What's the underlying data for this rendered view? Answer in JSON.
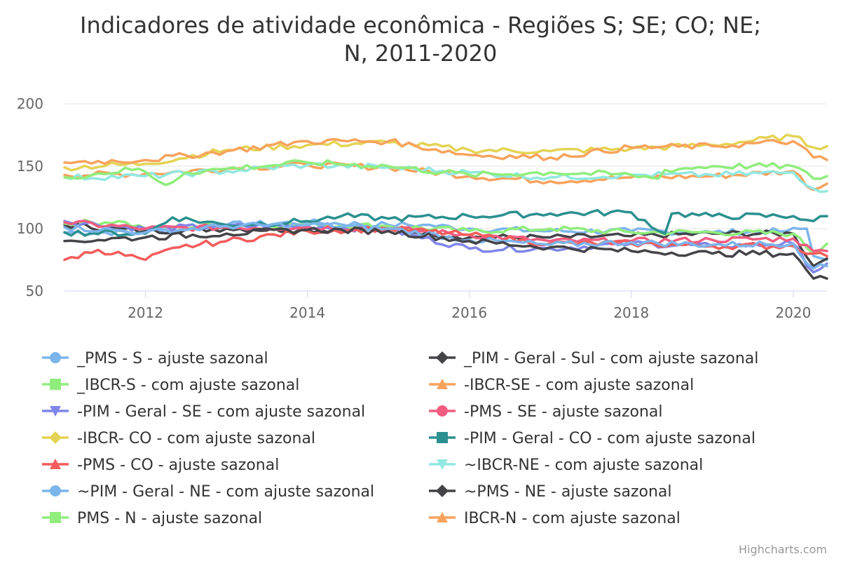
{
  "chart_data": {
    "type": "line",
    "title_line1": "Indicadores de atividade econômica - Regiões S; SE; CO; NE;",
    "title_line2": "N, 2011-2020",
    "xlim": [
      "2011-01",
      "2020-06"
    ],
    "xticks": [
      "2012",
      "2014",
      "2016",
      "2018",
      "2020"
    ],
    "ylim": [
      50,
      200
    ],
    "yticks": [
      "50",
      "100",
      "150",
      "200"
    ],
    "grid": true,
    "legend_position": "bottom",
    "credits": "Highcharts.com",
    "series": [
      {
        "name": "_PMS - S - ajuste sazonal",
        "color": "#7cb5ec",
        "marker": "circle",
        "points": [
          [
            "2011-01",
            97
          ],
          [
            "2012-01",
            97
          ],
          [
            "2013-01",
            103
          ],
          [
            "2014-01",
            105
          ],
          [
            "2015-01",
            103
          ],
          [
            "2015-06",
            103
          ],
          [
            "2016-01",
            100
          ],
          [
            "2017-01",
            98
          ],
          [
            "2018-01",
            98
          ],
          [
            "2019-01",
            97
          ],
          [
            "2019-12",
            98
          ],
          [
            "2020-03",
            100
          ],
          [
            "2020-04",
            78
          ],
          [
            "2020-06",
            75
          ]
        ]
      },
      {
        "name": "_PIM - Geral - Sul - com ajuste sazonal",
        "color": "#434348",
        "marker": "diamond",
        "points": [
          [
            "2011-01",
            103
          ],
          [
            "2012-01",
            98
          ],
          [
            "2013-01",
            100
          ],
          [
            "2014-01",
            99
          ],
          [
            "2015-01",
            100
          ],
          [
            "2016-01",
            93
          ],
          [
            "2017-01",
            93
          ],
          [
            "2018-01",
            94
          ],
          [
            "2019-01",
            96
          ],
          [
            "2020-01",
            96
          ],
          [
            "2020-04",
            70
          ],
          [
            "2020-06",
            76
          ]
        ]
      },
      {
        "name": "_IBCR-S - com ajuste sazonal",
        "color": "#90ed7d",
        "marker": "square",
        "points": [
          [
            "2011-01",
            104
          ],
          [
            "2011-09",
            106
          ],
          [
            "2012-01",
            100
          ],
          [
            "2013-01",
            103
          ],
          [
            "2014-01",
            103
          ],
          [
            "2015-01",
            102
          ],
          [
            "2016-01",
            98
          ],
          [
            "2017-01",
            100
          ],
          [
            "2018-01",
            97
          ],
          [
            "2019-01",
            97
          ],
          [
            "2020-01",
            96
          ],
          [
            "2020-04",
            80
          ],
          [
            "2020-06",
            88
          ]
        ]
      },
      {
        "name": "-IBCR-SE - com ajuste sazonal",
        "color": "#f7a35c",
        "marker": "triangle",
        "points": [
          [
            "2011-01",
            143
          ],
          [
            "2012-01",
            144
          ],
          [
            "2013-01",
            148
          ],
          [
            "2014-01",
            151
          ],
          [
            "2015-01",
            149
          ],
          [
            "2016-01",
            142
          ],
          [
            "2017-01",
            138
          ],
          [
            "2018-01",
            141
          ],
          [
            "2019-01",
            142
          ],
          [
            "2020-01",
            146
          ],
          [
            "2020-04",
            131
          ],
          [
            "2020-06",
            136
          ]
        ]
      },
      {
        "name": "-PIM - Geral - SE - com ajuste sazonal",
        "color": "#8085e9",
        "marker": "triangle-down",
        "points": [
          [
            "2011-01",
            106
          ],
          [
            "2012-01",
            100
          ],
          [
            "2013-01",
            102
          ],
          [
            "2014-01",
            102
          ],
          [
            "2015-01",
            99
          ],
          [
            "2016-01",
            84
          ],
          [
            "2017-01",
            84
          ],
          [
            "2018-01",
            88
          ],
          [
            "2019-01",
            86
          ],
          [
            "2020-01",
            88
          ],
          [
            "2020-04",
            65
          ],
          [
            "2020-06",
            72
          ]
        ]
      },
      {
        "name": "-PMS - SE - ajuste sazonal",
        "color": "#f15c80",
        "marker": "circle",
        "points": [
          [
            "2011-01",
            105
          ],
          [
            "2012-01",
            100
          ],
          [
            "2013-01",
            101
          ],
          [
            "2014-01",
            101
          ],
          [
            "2015-01",
            100
          ],
          [
            "2016-01",
            95
          ],
          [
            "2017-01",
            90
          ],
          [
            "2018-01",
            90
          ],
          [
            "2019-01",
            91
          ],
          [
            "2020-01",
            92
          ],
          [
            "2020-04",
            82
          ],
          [
            "2020-06",
            82
          ]
        ]
      },
      {
        "name": "-IBCR- CO - com ajuste sazonal",
        "color": "#e4d354",
        "marker": "diamond",
        "points": [
          [
            "2011-01",
            149
          ],
          [
            "2012-01",
            152
          ],
          [
            "2013-01",
            163
          ],
          [
            "2014-01",
            167
          ],
          [
            "2015-01",
            169
          ],
          [
            "2016-01",
            163
          ],
          [
            "2017-01",
            162
          ],
          [
            "2018-01",
            164
          ],
          [
            "2019-01",
            167
          ],
          [
            "2020-01",
            174
          ],
          [
            "2020-04",
            165
          ],
          [
            "2020-06",
            166
          ]
        ]
      },
      {
        "name": "-PIM - Geral - CO - com ajuste sazonal",
        "color": "#2b908f",
        "marker": "square",
        "points": [
          [
            "2011-01",
            97
          ],
          [
            "2012-01",
            96
          ],
          [
            "2012-05",
            109
          ],
          [
            "2013-01",
            103
          ],
          [
            "2014-01",
            106
          ],
          [
            "2014-06",
            110
          ],
          [
            "2015-01",
            108
          ],
          [
            "2016-01",
            110
          ],
          [
            "2017-01",
            112
          ],
          [
            "2018-01",
            113
          ],
          [
            "2018-06",
            96
          ],
          [
            "2018-07",
            112
          ],
          [
            "2019-01",
            110
          ],
          [
            "2020-01",
            110
          ],
          [
            "2020-04",
            106
          ],
          [
            "2020-06",
            110
          ]
        ]
      },
      {
        "name": "-PMS - CO - ajuste sazonal",
        "color": "#f45b5b",
        "marker": "triangle",
        "points": [
          [
            "2011-01",
            75
          ],
          [
            "2011-06",
            83
          ],
          [
            "2012-01",
            75
          ],
          [
            "2012-06",
            85
          ],
          [
            "2013-01",
            90
          ],
          [
            "2014-01",
            98
          ],
          [
            "2015-01",
            100
          ],
          [
            "2016-01",
            95
          ],
          [
            "2017-01",
            88
          ],
          [
            "2018-01",
            88
          ],
          [
            "2019-01",
            86
          ],
          [
            "2020-01",
            86
          ],
          [
            "2020-04",
            80
          ],
          [
            "2020-06",
            78
          ]
        ]
      },
      {
        "name": "~IBCR-NE - com ajuste sazonal",
        "color": "#91e8e1",
        "marker": "triangle-down",
        "points": [
          [
            "2011-01",
            141
          ],
          [
            "2012-01",
            142
          ],
          [
            "2013-01",
            146
          ],
          [
            "2014-01",
            151
          ],
          [
            "2015-01",
            149
          ],
          [
            "2016-01",
            145
          ],
          [
            "2017-01",
            141
          ],
          [
            "2018-01",
            143
          ],
          [
            "2019-01",
            143
          ],
          [
            "2020-01",
            145
          ],
          [
            "2020-04",
            132
          ],
          [
            "2020-06",
            130
          ]
        ]
      },
      {
        "name": "~PIM - Geral - NE - com ajuste sazonal",
        "color": "#7cb5ec",
        "marker": "circle",
        "points": [
          [
            "2011-01",
            101
          ],
          [
            "2012-01",
            97
          ],
          [
            "2013-01",
            102
          ],
          [
            "2014-01",
            103
          ],
          [
            "2015-01",
            100
          ],
          [
            "2016-01",
            91
          ],
          [
            "2017-01",
            87
          ],
          [
            "2018-01",
            89
          ],
          [
            "2019-01",
            87
          ],
          [
            "2020-01",
            88
          ],
          [
            "2020-04",
            68
          ],
          [
            "2020-06",
            70
          ]
        ]
      },
      {
        "name": "~PMS - NE - ajuste sazonal",
        "color": "#434348",
        "marker": "diamond",
        "points": [
          [
            "2011-01",
            90
          ],
          [
            "2012-01",
            93
          ],
          [
            "2013-01",
            96
          ],
          [
            "2014-01",
            99
          ],
          [
            "2015-01",
            98
          ],
          [
            "2016-01",
            90
          ],
          [
            "2017-01",
            85
          ],
          [
            "2018-01",
            82
          ],
          [
            "2019-01",
            80
          ],
          [
            "2020-01",
            80
          ],
          [
            "2020-04",
            60
          ],
          [
            "2020-06",
            60
          ]
        ]
      },
      {
        "name": "PMS - N - ajuste sazonal",
        "color": "#90ed7d",
        "marker": "square",
        "points": [
          [
            "2011-01",
            141
          ],
          [
            "2011-12",
            148
          ],
          [
            "2012-02",
            141
          ],
          [
            "2012-04",
            135
          ],
          [
            "2012-07",
            145
          ],
          [
            "2013-01",
            148
          ],
          [
            "2014-01",
            153
          ],
          [
            "2015-01",
            150
          ],
          [
            "2016-01",
            143
          ],
          [
            "2017-01",
            145
          ],
          [
            "2018-01",
            143
          ],
          [
            "2018-05",
            140
          ],
          [
            "2018-06",
            147
          ],
          [
            "2019-01",
            150
          ],
          [
            "2020-01",
            150
          ],
          [
            "2020-04",
            140
          ],
          [
            "2020-06",
            142
          ]
        ]
      },
      {
        "name": "IBCR-N - com ajuste sazonal",
        "color": "#f7a35c",
        "marker": "triangle",
        "points": [
          [
            "2011-01",
            153
          ],
          [
            "2012-01",
            155
          ],
          [
            "2013-01",
            162
          ],
          [
            "2014-01",
            170
          ],
          [
            "2015-01",
            170
          ],
          [
            "2016-01",
            159
          ],
          [
            "2017-01",
            157
          ],
          [
            "2018-01",
            165
          ],
          [
            "2019-01",
            166
          ],
          [
            "2020-01",
            170
          ],
          [
            "2020-04",
            157
          ],
          [
            "2020-06",
            155
          ]
        ]
      }
    ]
  }
}
